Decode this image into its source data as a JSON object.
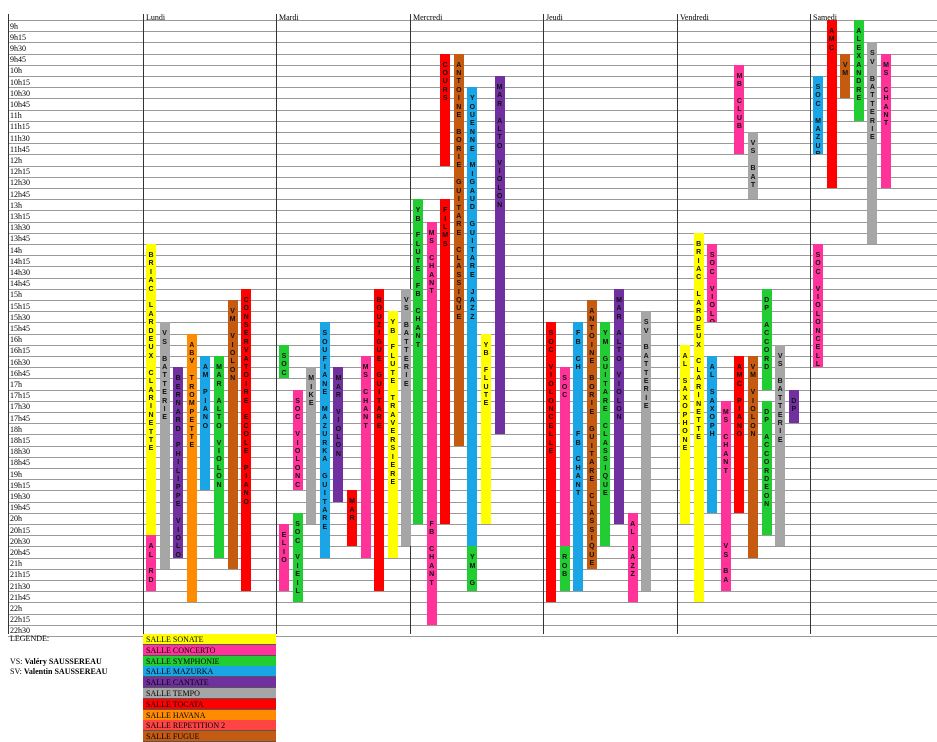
{
  "times": [
    "9h",
    "9h15",
    "9h30",
    "9h45",
    "10h",
    "10h15",
    "10h30",
    "10h45",
    "11h",
    "11h15",
    "11h30",
    "11h45",
    "12h",
    "12h15",
    "12h30",
    "12h45",
    "13h",
    "13h15",
    "13h30",
    "13h45",
    "14h",
    "14h15",
    "14h30",
    "14h45",
    "15h",
    "15h15",
    "15h30",
    "15h45",
    "16h",
    "16h15",
    "16h30",
    "16h45",
    "17h",
    "17h15",
    "17h30",
    "17h45",
    "18h",
    "18h15",
    "18h30",
    "18h45",
    "19h",
    "19h15",
    "19h30",
    "19h45",
    "20h",
    "20h15",
    "20h30",
    "20h45",
    "21h",
    "21h15",
    "21h30",
    "21h45",
    "22h",
    "22h15",
    "22h30"
  ],
  "days": [
    "Lundi",
    "Mardi",
    "Mercredi",
    "Jeudi",
    "Vendredi",
    "Samedi"
  ],
  "colors": {
    "sonate": "#ffff00",
    "concerto": "#ff3399",
    "symphonie": "#22cc33",
    "mazurka": "#1aa6e6",
    "cantate": "#7030a0",
    "tempo": "#a6a6a6",
    "tocata": "#ff0000",
    "havana": "#ff8c00",
    "repetition2": "#ff4444",
    "fugue": "#c55a11"
  },
  "events": [
    {
      "day": 0,
      "col": 0,
      "start": "14h",
      "end": "20h30",
      "room": "sonate",
      "text": "BRIAC LARDEUX CLARINETTE"
    },
    {
      "day": 0,
      "col": 0,
      "start": "20h30",
      "end": "21h45",
      "room": "concerto",
      "text": "AL RD"
    },
    {
      "day": 0,
      "col": 1,
      "start": "15h45",
      "end": "21h15",
      "room": "tempo",
      "text": "VS BATTERIE"
    },
    {
      "day": 0,
      "col": 2,
      "start": "16h45",
      "end": "21h",
      "room": "cantate",
      "text": "BERNARD PHILIPPE VIOLON"
    },
    {
      "day": 0,
      "col": 3,
      "start": "16h",
      "end": "22h",
      "room": "havana",
      "text": "ABV TROMPETTE"
    },
    {
      "day": 0,
      "col": 4,
      "start": "16h30",
      "end": "19h30",
      "room": "mazurka",
      "text": "AM PIANO"
    },
    {
      "day": 0,
      "col": 5,
      "start": "16h30",
      "end": "21h",
      "room": "symphonie",
      "text": "MAR ALTO VIOLON"
    },
    {
      "day": 0,
      "col": 6,
      "start": "15h15",
      "end": "21h15",
      "room": "fugue",
      "text": "VM VIOLON"
    },
    {
      "day": 0,
      "col": 7,
      "start": "15h",
      "end": "21h45",
      "room": "tocata",
      "text": "CONSERVATOIRE ECOLE PIANO"
    },
    {
      "day": 1,
      "col": 0,
      "start": "16h15",
      "end": "17h",
      "room": "symphonie",
      "text": "SOC"
    },
    {
      "day": 1,
      "col": 0,
      "start": "20h15",
      "end": "21h45",
      "room": "concerto",
      "text": "ELIO"
    },
    {
      "day": 1,
      "col": 1,
      "start": "17h15",
      "end": "19h30",
      "room": "concerto",
      "text": "SOC VIOLONCELLE"
    },
    {
      "day": 1,
      "col": 1,
      "start": "20h",
      "end": "22h",
      "room": "symphonie",
      "text": "SOC VIEIL"
    },
    {
      "day": 1,
      "col": 2,
      "start": "16h45",
      "end": "20h15",
      "room": "tempo",
      "text": "MIKE"
    },
    {
      "day": 1,
      "col": 3,
      "start": "15h45",
      "end": "21h",
      "room": "mazurka",
      "text": "SOUFIANE MAZURKA GUITARE"
    },
    {
      "day": 1,
      "col": 4,
      "start": "16h45",
      "end": "19h45",
      "room": "cantate",
      "text": "MAR VIOLON"
    },
    {
      "day": 1,
      "col": 5,
      "start": "19h30",
      "end": "20h45",
      "room": "tocata",
      "text": "MAR"
    },
    {
      "day": 1,
      "col": 6,
      "start": "16h30",
      "end": "21h",
      "room": "concerto",
      "text": "MS CHANT"
    },
    {
      "day": 1,
      "col": 7,
      "start": "15h",
      "end": "21h45",
      "room": "tocata",
      "text": "BOUZIGUE GUITARE"
    },
    {
      "day": 1,
      "col": 8,
      "start": "15h30",
      "end": "21h",
      "room": "sonate",
      "text": "YB FLUTE TRAVERSIERE"
    },
    {
      "day": 1,
      "col": 9,
      "start": "15h",
      "end": "20h45",
      "room": "tempo",
      "text": "VS BATTERIE"
    },
    {
      "day": 2,
      "col": 0,
      "start": "13h",
      "end": "20h15",
      "room": "symphonie",
      "text": "YB FLUTE FB CHANT"
    },
    {
      "day": 2,
      "col": 1,
      "start": "13h30",
      "end": "20h",
      "room": "concerto",
      "text": "MS CHANT"
    },
    {
      "day": 2,
      "col": 1,
      "start": "20h",
      "end": "22h30",
      "room": "concerto",
      "text": "FB CHANT"
    },
    {
      "day": 2,
      "col": 2,
      "start": "9h45",
      "end": "12h15",
      "room": "tocata",
      "text": "COURS"
    },
    {
      "day": 2,
      "col": 2,
      "start": "13h",
      "end": "20h15",
      "room": "tocata",
      "text": "FILMS"
    },
    {
      "day": 2,
      "col": 3,
      "start": "9h45",
      "end": "18h30",
      "room": "fugue",
      "text": "ANTOINE BORIE GUITARE CLASSIQUE"
    },
    {
      "day": 2,
      "col": 4,
      "start": "10h30",
      "end": "20h45",
      "room": "mazurka",
      "text": "YOUENNE MIGAUD GUITARE JAZZ"
    },
    {
      "day": 2,
      "col": 4,
      "start": "20h45",
      "end": "21h45",
      "room": "symphonie",
      "text": "YM G"
    },
    {
      "day": 2,
      "col": 5,
      "start": "16h",
      "end": "20h15",
      "room": "sonate",
      "text": "YB FLUTE"
    },
    {
      "day": 2,
      "col": 6,
      "start": "10h15",
      "end": "18h15",
      "room": "cantate",
      "text": "MAR ALTO VIOLON"
    },
    {
      "day": 3,
      "col": 0,
      "start": "15h45",
      "end": "22h",
      "room": "tocata",
      "text": "SOC VIOLONCELLE"
    },
    {
      "day": 3,
      "col": 1,
      "start": "16h45",
      "end": "20h45",
      "room": "concerto",
      "text": "SOC"
    },
    {
      "day": 3,
      "col": 1,
      "start": "20h45",
      "end": "21h45",
      "room": "symphonie",
      "text": "ROB"
    },
    {
      "day": 3,
      "col": 2,
      "start": "15h45",
      "end": "18h",
      "room": "mazurka",
      "text": "FB CH"
    },
    {
      "day": 3,
      "col": 2,
      "start": "18h",
      "end": "21h45",
      "room": "mazurka",
      "text": "FB CHANT"
    },
    {
      "day": 3,
      "col": 3,
      "start": "15h15",
      "end": "21h15",
      "room": "fugue",
      "text": "ANTOINE BORIE GUITARE CLASSIQUE"
    },
    {
      "day": 3,
      "col": 4,
      "start": "15h45",
      "end": "20h45",
      "room": "symphonie",
      "text": "YM GUITARE CLASSIQUE"
    },
    {
      "day": 3,
      "col": 5,
      "start": "15h",
      "end": "20h15",
      "room": "cantate",
      "text": "MAR ALTO VIOLON"
    },
    {
      "day": 3,
      "col": 6,
      "start": "20h",
      "end": "22h",
      "room": "concerto",
      "text": "AL JAZZ"
    },
    {
      "day": 3,
      "col": 7,
      "start": "15h30",
      "end": "21h45",
      "room": "tempo",
      "text": "SV BATTERIE"
    },
    {
      "day": 4,
      "col": 0,
      "start": "16h15",
      "end": "20h15",
      "room": "sonate",
      "text": "AL SAXOPHONE"
    },
    {
      "day": 4,
      "col": 1,
      "start": "13h45",
      "end": "22h",
      "room": "sonate",
      "text": "BRIAC LARDEUX CLARINETTE"
    },
    {
      "day": 4,
      "col": 2,
      "start": "14h",
      "end": "15h45",
      "room": "concerto",
      "text": "SOC VIOLONCELLE"
    },
    {
      "day": 4,
      "col": 2,
      "start": "16h30",
      "end": "20h",
      "room": "mazurka",
      "text": "AL SAXOPH"
    },
    {
      "day": 4,
      "col": 3,
      "start": "17h30",
      "end": "20h30",
      "room": "concerto",
      "text": "MS CHANT"
    },
    {
      "day": 4,
      "col": 3,
      "start": "20h30",
      "end": "21h45",
      "room": "concerto",
      "text": "VS BA"
    },
    {
      "day": 4,
      "col": 4,
      "start": "10h",
      "end": "12h",
      "room": "concerto",
      "text": "MB CLUB"
    },
    {
      "day": 4,
      "col": 4,
      "start": "16h30",
      "end": "20h",
      "room": "tocata",
      "text": "AMC PIANO"
    },
    {
      "day": 4,
      "col": 5,
      "start": "11h30",
      "end": "13h",
      "room": "tempo",
      "text": "VS BAT"
    },
    {
      "day": 4,
      "col": 5,
      "start": "16h30",
      "end": "21h",
      "room": "fugue",
      "text": "VM VIOLON"
    },
    {
      "day": 4,
      "col": 6,
      "start": "15h",
      "end": "17h15",
      "room": "symphonie",
      "text": "DP ACCORD"
    },
    {
      "day": 4,
      "col": 6,
      "start": "17h30",
      "end": "20h30",
      "room": "symphonie",
      "text": "DP ACCORDEON"
    },
    {
      "day": 4,
      "col": 7,
      "start": "16h15",
      "end": "20h45",
      "room": "tempo",
      "text": "VS BATTERIE"
    },
    {
      "day": 4,
      "col": 8,
      "start": "17h15",
      "end": "18h",
      "room": "cantate",
      "text": "DP"
    },
    {
      "day": 5,
      "col": 0,
      "start": "10h15",
      "end": "12h",
      "room": "mazurka",
      "text": "SOC MAZURKA"
    },
    {
      "day": 5,
      "col": 0,
      "start": "14h",
      "end": "16h45",
      "room": "concerto",
      "text": "SOC VIOLONCELLE"
    },
    {
      "day": 5,
      "col": 1,
      "start": "9h",
      "end": "12h45",
      "room": "tocata",
      "text": "AMC"
    },
    {
      "day": 5,
      "col": 2,
      "start": "9h45",
      "end": "10h45",
      "room": "fugue",
      "text": "VM"
    },
    {
      "day": 5,
      "col": 3,
      "start": "9h",
      "end": "11h15",
      "room": "symphonie",
      "text": "ALEXANDRE"
    },
    {
      "day": 5,
      "col": 4,
      "start": "9h30",
      "end": "14h",
      "room": "tempo",
      "text": "SV BATTERIE"
    },
    {
      "day": 5,
      "col": 5,
      "start": "9h45",
      "end": "12h45",
      "room": "concerto",
      "text": "MS CHANT"
    }
  ],
  "legend": {
    "title": "LEGENDE:",
    "notes": [
      {
        "abbr": "VS: ",
        "name": "Valéry SAUSSEREAU"
      },
      {
        "abbr": "SV: ",
        "name": "Valentin SAUSSEREAU"
      }
    ],
    "rooms": [
      {
        "label": "SALLE SONATE",
        "room": "sonate"
      },
      {
        "label": "SALLE CONCERTO",
        "room": "concerto"
      },
      {
        "label": "SALLE SYMPHONIE",
        "room": "symphonie"
      },
      {
        "label": "SALLE MAZURKA",
        "room": "mazurka"
      },
      {
        "label": "SALLE CANTATE",
        "room": "cantate"
      },
      {
        "label": "SALLE TEMPO",
        "room": "tempo"
      },
      {
        "label": "SALLE TOCATA",
        "room": "tocata"
      },
      {
        "label": "SALLE HAVANA",
        "room": "havana"
      },
      {
        "label": "SALLE REPETITION 2",
        "room": "repetition2"
      },
      {
        "label": "SALLE FUGUE",
        "room": "fugue"
      }
    ]
  }
}
